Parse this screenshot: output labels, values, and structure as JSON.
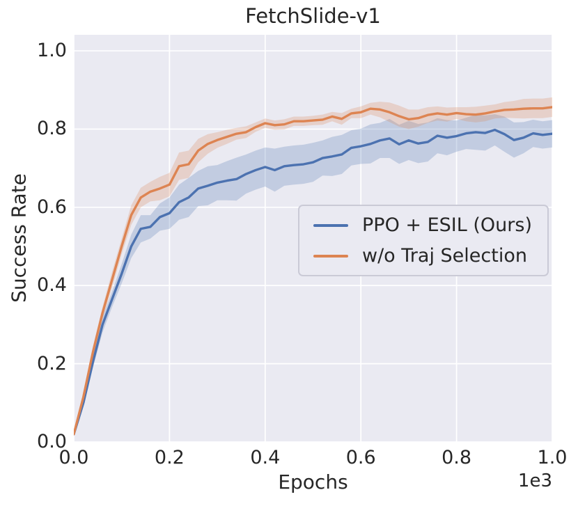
{
  "figure": {
    "title": "FetchSlide-v1",
    "xlabel": "Epochs",
    "ylabel": "Success Rate",
    "x_offset_label": "1e3"
  },
  "style": {
    "panel_bg": "#eaeaf2",
    "grid_color": "#ffffff",
    "text_color": "#262626",
    "band_opacity": 0.25,
    "blue": "#4c72b0",
    "orange": "#dd8452"
  },
  "chart_data": {
    "type": "line",
    "title": "FetchSlide-v1",
    "xlabel": "Epochs",
    "ylabel": "Success Rate",
    "x_axis_offset": "1e3",
    "xlim": [
      0,
      1000
    ],
    "ylim": [
      0,
      1.041
    ],
    "grid": true,
    "legend_position": "center right",
    "xticks": {
      "values": [
        0,
        200,
        400,
        600,
        800,
        1000
      ],
      "labels": [
        "0.0",
        "0.2",
        "0.4",
        "0.6",
        "0.8",
        "1.0"
      ]
    },
    "yticks": {
      "values": [
        0,
        0.2,
        0.4,
        0.6,
        0.8,
        1.0
      ],
      "labels": [
        "0.0",
        "0.2",
        "0.4",
        "0.6",
        "0.8",
        "1.0"
      ]
    },
    "x": [
      0,
      20,
      40,
      60,
      80,
      100,
      120,
      140,
      160,
      180,
      200,
      220,
      240,
      260,
      280,
      300,
      320,
      340,
      360,
      380,
      400,
      420,
      440,
      460,
      480,
      500,
      520,
      540,
      560,
      580,
      600,
      620,
      640,
      660,
      680,
      700,
      720,
      740,
      760,
      780,
      800,
      820,
      840,
      860,
      880,
      900,
      920,
      940,
      960,
      980,
      1000
    ],
    "series": [
      {
        "name": "PPO + ESIL (Ours)",
        "color": "#4c72b0",
        "y": [
          0.02,
          0.1,
          0.205,
          0.3,
          0.365,
          0.43,
          0.5,
          0.545,
          0.55,
          0.575,
          0.585,
          0.613,
          0.625,
          0.648,
          0.655,
          0.663,
          0.668,
          0.672,
          0.685,
          0.695,
          0.703,
          0.695,
          0.705,
          0.708,
          0.71,
          0.715,
          0.726,
          0.73,
          0.735,
          0.752,
          0.756,
          0.762,
          0.771,
          0.776,
          0.761,
          0.771,
          0.763,
          0.767,
          0.783,
          0.778,
          0.782,
          0.789,
          0.792,
          0.79,
          0.798,
          0.787,
          0.772,
          0.778,
          0.789,
          0.785,
          0.788
        ],
        "band": [
          0.005,
          0.01,
          0.015,
          0.02,
          0.02,
          0.025,
          0.03,
          0.035,
          0.03,
          0.035,
          0.04,
          0.045,
          0.05,
          0.045,
          0.05,
          0.045,
          0.05,
          0.055,
          0.05,
          0.05,
          0.05,
          0.055,
          0.05,
          0.05,
          0.05,
          0.05,
          0.045,
          0.05,
          0.05,
          0.045,
          0.045,
          0.05,
          0.045,
          0.05,
          0.05,
          0.05,
          0.05,
          0.05,
          0.045,
          0.045,
          0.04,
          0.04,
          0.045,
          0.045,
          0.04,
          0.045,
          0.045,
          0.04,
          0.035,
          0.035,
          0.035
        ]
      },
      {
        "name": "w/o Traj Selection",
        "color": "#dd8452",
        "y": [
          0.02,
          0.115,
          0.23,
          0.33,
          0.415,
          0.5,
          0.58,
          0.625,
          0.64,
          0.648,
          0.658,
          0.705,
          0.71,
          0.745,
          0.762,
          0.772,
          0.78,
          0.788,
          0.792,
          0.805,
          0.815,
          0.81,
          0.812,
          0.82,
          0.82,
          0.822,
          0.824,
          0.832,
          0.826,
          0.84,
          0.843,
          0.852,
          0.85,
          0.843,
          0.833,
          0.825,
          0.828,
          0.836,
          0.84,
          0.837,
          0.841,
          0.838,
          0.837,
          0.84,
          0.845,
          0.849,
          0.85,
          0.852,
          0.853,
          0.853,
          0.856
        ],
        "band": [
          0.005,
          0.01,
          0.015,
          0.015,
          0.02,
          0.02,
          0.025,
          0.025,
          0.025,
          0.03,
          0.03,
          0.035,
          0.035,
          0.03,
          0.025,
          0.02,
          0.018,
          0.015,
          0.015,
          0.012,
          0.012,
          0.012,
          0.013,
          0.012,
          0.012,
          0.012,
          0.013,
          0.012,
          0.015,
          0.012,
          0.015,
          0.015,
          0.02,
          0.025,
          0.027,
          0.025,
          0.022,
          0.02,
          0.018,
          0.018,
          0.015,
          0.018,
          0.02,
          0.02,
          0.018,
          0.02,
          0.022,
          0.025,
          0.025,
          0.025,
          0.025
        ]
      }
    ]
  }
}
